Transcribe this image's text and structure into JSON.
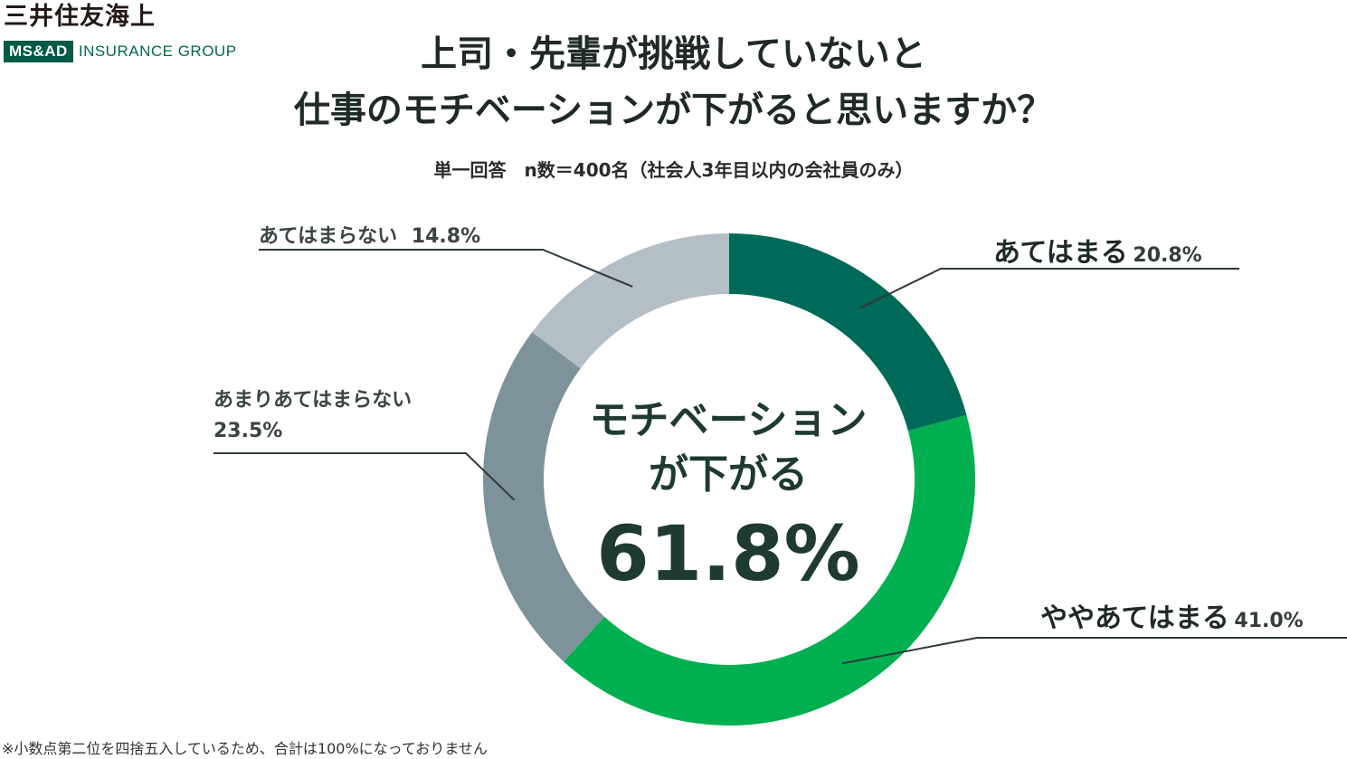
{
  "brand": {
    "name": "三井住友海上",
    "group_box": "MS&AD",
    "group_text": "INSURANCE GROUP"
  },
  "title_line1": "上司・先輩が挑戦していないと",
  "title_line2": "仕事のモチベーションが下がると思いますか？",
  "subtitle": "単一回答　n数＝400名（社会人3年目以内の会社員のみ）",
  "center": {
    "line1": "モチベーション",
    "line2": "が下がる",
    "value": "61.8%"
  },
  "chart_data": {
    "type": "pie",
    "donut": true,
    "start": "top",
    "direction": "clockwise",
    "slices": [
      {
        "label": "あてはまる",
        "value": 20.8,
        "value_label": "20.8%",
        "color": "#006a58"
      },
      {
        "label": "ややあてはまる",
        "value": 41.0,
        "value_label": "41.0%",
        "color": "#00b050"
      },
      {
        "label": "あまりあてはまらない",
        "value": 23.5,
        "value_label": "23.5%",
        "color": "#7e929c"
      },
      {
        "label": "あてはまらない",
        "value": 14.8,
        "value_label": "14.8%",
        "color": "#b4bec5"
      }
    ]
  },
  "footnote": "※小数点第二位を四捨五入しているため、合計は100%になっておりません"
}
